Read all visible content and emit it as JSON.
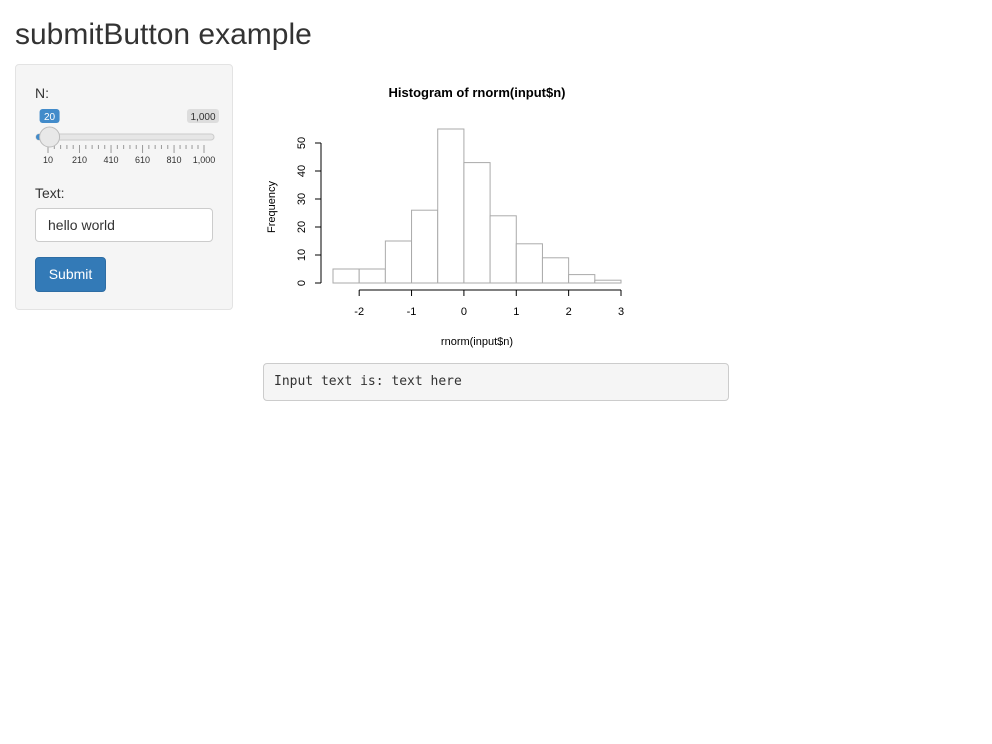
{
  "header": {
    "title": "submitButton example"
  },
  "sidebar": {
    "slider": {
      "label": "N:",
      "value": 20,
      "ticks": [
        10,
        210,
        410,
        610,
        810,
        {
          "value": 1000,
          "label": "1,000"
        }
      ]
    },
    "text_input": {
      "label": "Text:",
      "value": "hello world"
    },
    "button": {
      "label": "Submit"
    }
  },
  "chart_data": {
    "type": "histogram",
    "title": "Histogram of rnorm(input$n)",
    "x_label": "rnorm(input$n)",
    "y_label": "Frequency",
    "bins": [
      -2.5,
      -2,
      -1.5,
      -1,
      -0.5,
      0,
      0.5,
      1,
      1.5,
      2,
      2.5,
      3
    ],
    "values": [
      5,
      5,
      15,
      26,
      55,
      43,
      24,
      14,
      9,
      3,
      1
    ],
    "color": "#ffffff",
    "edge_color": "#aaaaaa",
    "xlim": [
      -2.5,
      3
    ],
    "ylim": [
      0,
      55
    ],
    "xticks": [
      -2,
      -1,
      0,
      1,
      2,
      3
    ],
    "yticks": [
      0,
      10,
      20,
      30,
      40,
      50
    ]
  },
  "output": {
    "text": "Input text is: text here"
  }
}
